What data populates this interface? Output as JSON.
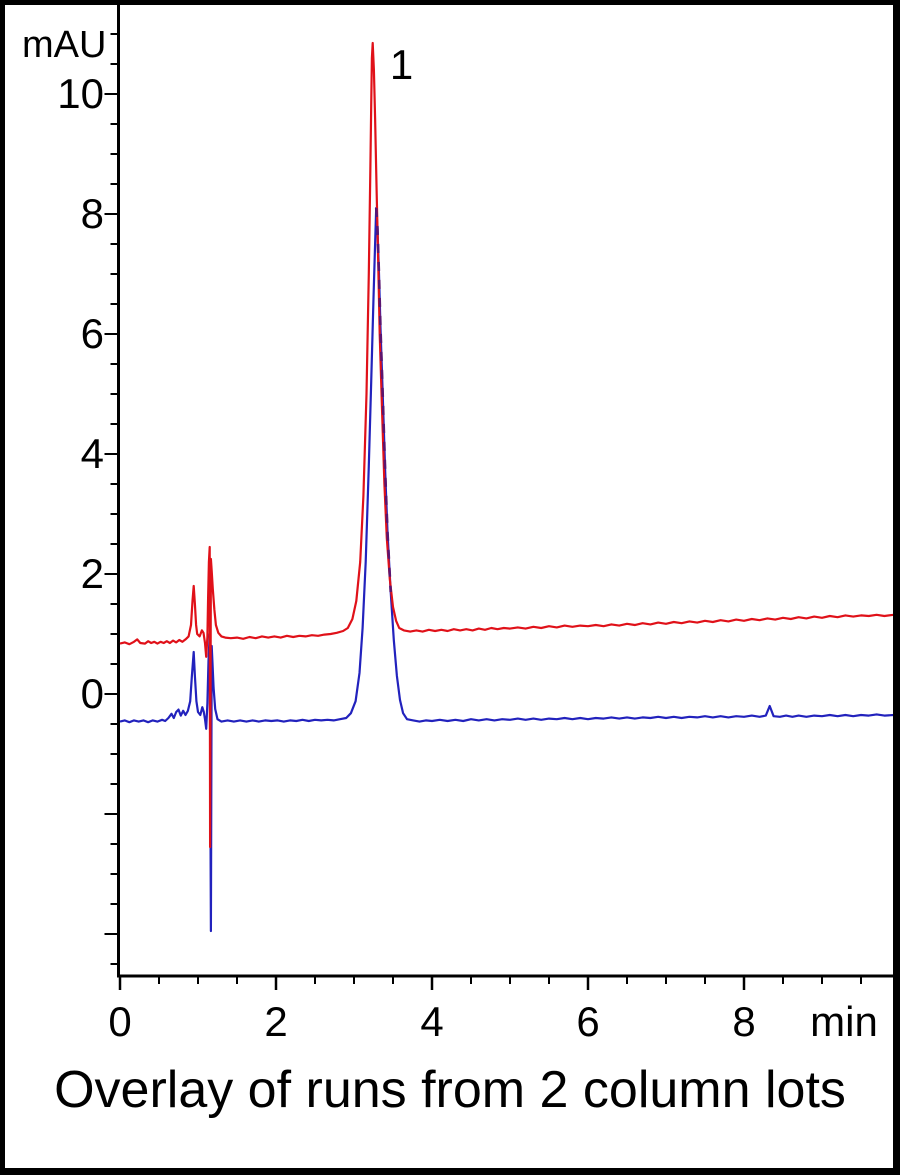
{
  "caption": "Overlay of runs from 2 column lots",
  "colors": {
    "trace_red": "#e01119",
    "trace_blue": "#2222bd",
    "overlap_purple": "#5a1570",
    "axis": "#000000",
    "background": "#ffffff",
    "border": "#000000"
  },
  "chart_data": {
    "type": "line",
    "title": "Overlay of runs from 2 column lots",
    "xlabel": "min",
    "ylabel": "mAU",
    "xlim": [
      0,
      9.92
    ],
    "ylim": [
      -4.7,
      11.5
    ],
    "grid": false,
    "legend": "none",
    "x_major_ticks": [
      0,
      2,
      4,
      6,
      8
    ],
    "x_minor_step": 0.5,
    "y_major_ticks": [
      10,
      8,
      6,
      4,
      2,
      0,
      -2,
      -4
    ],
    "y_labeled_ticks": [
      10,
      8,
      6,
      4,
      2,
      0
    ],
    "y_minor_step": 0.5,
    "annotations": [
      {
        "text": "1",
        "x": 3.61,
        "y": 10.48
      }
    ],
    "overlap_segment": {
      "series": "column lot 2 (blue)",
      "from_x": 3.285,
      "to_x": 3.47,
      "style": "dashed"
    },
    "series": [
      {
        "name": "column lot 1 (red)",
        "color": "#e01119",
        "points": [
          [
            0.0,
            0.84
          ],
          [
            0.06,
            0.86
          ],
          [
            0.12,
            0.83
          ],
          [
            0.18,
            0.87
          ],
          [
            0.22,
            0.91
          ],
          [
            0.26,
            0.85
          ],
          [
            0.32,
            0.84
          ],
          [
            0.36,
            0.88
          ],
          [
            0.4,
            0.85
          ],
          [
            0.44,
            0.87
          ],
          [
            0.48,
            0.84
          ],
          [
            0.52,
            0.87
          ],
          [
            0.56,
            0.85
          ],
          [
            0.6,
            0.88
          ],
          [
            0.64,
            0.85
          ],
          [
            0.68,
            0.89
          ],
          [
            0.72,
            0.86
          ],
          [
            0.76,
            0.9
          ],
          [
            0.8,
            0.87
          ],
          [
            0.84,
            0.91
          ],
          [
            0.88,
            0.96
          ],
          [
            0.91,
            1.15
          ],
          [
            0.93,
            1.55
          ],
          [
            0.945,
            1.8
          ],
          [
            0.96,
            1.5
          ],
          [
            0.975,
            1.15
          ],
          [
            0.99,
            1.0
          ],
          [
            1.02,
            0.96
          ],
          [
            1.05,
            1.06
          ],
          [
            1.07,
            1.02
          ],
          [
            1.09,
            0.85
          ],
          [
            1.105,
            0.62
          ],
          [
            1.12,
            0.95
          ],
          [
            1.13,
            1.6
          ],
          [
            1.14,
            2.2
          ],
          [
            1.15,
            2.45
          ],
          [
            1.155,
            -2.55
          ],
          [
            1.165,
            2.25
          ],
          [
            1.175,
            2.05
          ],
          [
            1.19,
            1.75
          ],
          [
            1.21,
            1.4
          ],
          [
            1.23,
            1.15
          ],
          [
            1.26,
            1.02
          ],
          [
            1.3,
            0.96
          ],
          [
            1.35,
            0.94
          ],
          [
            1.42,
            0.93
          ],
          [
            1.5,
            0.94
          ],
          [
            1.58,
            0.92
          ],
          [
            1.66,
            0.95
          ],
          [
            1.74,
            0.93
          ],
          [
            1.82,
            0.96
          ],
          [
            1.9,
            0.94
          ],
          [
            1.98,
            0.96
          ],
          [
            2.06,
            0.94
          ],
          [
            2.14,
            0.97
          ],
          [
            2.22,
            0.95
          ],
          [
            2.3,
            0.97
          ],
          [
            2.38,
            0.96
          ],
          [
            2.46,
            0.98
          ],
          [
            2.54,
            0.97
          ],
          [
            2.62,
            0.99
          ],
          [
            2.7,
            1.0
          ],
          [
            2.78,
            1.02
          ],
          [
            2.86,
            1.05
          ],
          [
            2.92,
            1.1
          ],
          [
            2.98,
            1.25
          ],
          [
            3.03,
            1.55
          ],
          [
            3.08,
            2.2
          ],
          [
            3.12,
            3.3
          ],
          [
            3.16,
            5.0
          ],
          [
            3.19,
            7.0
          ],
          [
            3.21,
            8.8
          ],
          [
            3.22,
            9.8
          ],
          [
            3.23,
            10.6
          ],
          [
            3.24,
            10.85
          ],
          [
            3.255,
            10.4
          ],
          [
            3.27,
            9.6
          ],
          [
            3.29,
            8.4
          ],
          [
            3.31,
            7.2
          ],
          [
            3.33,
            6.0
          ],
          [
            3.36,
            4.7
          ],
          [
            3.39,
            3.5
          ],
          [
            3.42,
            2.6
          ],
          [
            3.46,
            1.9
          ],
          [
            3.5,
            1.45
          ],
          [
            3.54,
            1.22
          ],
          [
            3.58,
            1.1
          ],
          [
            3.64,
            1.06
          ],
          [
            3.72,
            1.04
          ],
          [
            3.8,
            1.06
          ],
          [
            3.88,
            1.04
          ],
          [
            3.96,
            1.07
          ],
          [
            4.04,
            1.05
          ],
          [
            4.12,
            1.07
          ],
          [
            4.2,
            1.05
          ],
          [
            4.28,
            1.08
          ],
          [
            4.36,
            1.06
          ],
          [
            4.44,
            1.08
          ],
          [
            4.52,
            1.06
          ],
          [
            4.6,
            1.09
          ],
          [
            4.68,
            1.07
          ],
          [
            4.76,
            1.1
          ],
          [
            4.84,
            1.08
          ],
          [
            4.92,
            1.1
          ],
          [
            5.0,
            1.09
          ],
          [
            5.1,
            1.11
          ],
          [
            5.2,
            1.09
          ],
          [
            5.3,
            1.12
          ],
          [
            5.4,
            1.1
          ],
          [
            5.5,
            1.13
          ],
          [
            5.6,
            1.11
          ],
          [
            5.7,
            1.14
          ],
          [
            5.8,
            1.12
          ],
          [
            5.9,
            1.14
          ],
          [
            6.0,
            1.13
          ],
          [
            6.1,
            1.15
          ],
          [
            6.2,
            1.13
          ],
          [
            6.3,
            1.16
          ],
          [
            6.4,
            1.14
          ],
          [
            6.5,
            1.17
          ],
          [
            6.6,
            1.15
          ],
          [
            6.7,
            1.18
          ],
          [
            6.8,
            1.16
          ],
          [
            6.9,
            1.19
          ],
          [
            7.0,
            1.17
          ],
          [
            7.1,
            1.2
          ],
          [
            7.2,
            1.18
          ],
          [
            7.3,
            1.21
          ],
          [
            7.4,
            1.19
          ],
          [
            7.5,
            1.22
          ],
          [
            7.6,
            1.2
          ],
          [
            7.7,
            1.23
          ],
          [
            7.8,
            1.21
          ],
          [
            7.9,
            1.24
          ],
          [
            8.0,
            1.22
          ],
          [
            8.1,
            1.25
          ],
          [
            8.2,
            1.23
          ],
          [
            8.3,
            1.26
          ],
          [
            8.4,
            1.24
          ],
          [
            8.5,
            1.27
          ],
          [
            8.6,
            1.25
          ],
          [
            8.7,
            1.28
          ],
          [
            8.8,
            1.26
          ],
          [
            8.9,
            1.29
          ],
          [
            9.0,
            1.27
          ],
          [
            9.1,
            1.3
          ],
          [
            9.2,
            1.28
          ],
          [
            9.3,
            1.31
          ],
          [
            9.4,
            1.29
          ],
          [
            9.5,
            1.31
          ],
          [
            9.6,
            1.3
          ],
          [
            9.7,
            1.32
          ],
          [
            9.8,
            1.3
          ],
          [
            9.92,
            1.32
          ]
        ]
      },
      {
        "name": "column lot 2 (blue)",
        "color": "#2222bd",
        "points": [
          [
            0.0,
            -0.46
          ],
          [
            0.06,
            -0.44
          ],
          [
            0.12,
            -0.47
          ],
          [
            0.18,
            -0.44
          ],
          [
            0.24,
            -0.46
          ],
          [
            0.3,
            -0.44
          ],
          [
            0.36,
            -0.47
          ],
          [
            0.42,
            -0.44
          ],
          [
            0.48,
            -0.46
          ],
          [
            0.54,
            -0.43
          ],
          [
            0.58,
            -0.45
          ],
          [
            0.62,
            -0.4
          ],
          [
            0.66,
            -0.33
          ],
          [
            0.69,
            -0.4
          ],
          [
            0.72,
            -0.3
          ],
          [
            0.75,
            -0.26
          ],
          [
            0.78,
            -0.36
          ],
          [
            0.81,
            -0.28
          ],
          [
            0.84,
            -0.35
          ],
          [
            0.87,
            -0.28
          ],
          [
            0.9,
            -0.12
          ],
          [
            0.92,
            0.28
          ],
          [
            0.945,
            0.7
          ],
          [
            0.96,
            0.3
          ],
          [
            0.98,
            -0.12
          ],
          [
            1.0,
            -0.3
          ],
          [
            1.03,
            -0.35
          ],
          [
            1.055,
            -0.22
          ],
          [
            1.075,
            -0.3
          ],
          [
            1.09,
            -0.42
          ],
          [
            1.105,
            -0.58
          ],
          [
            1.12,
            -0.15
          ],
          [
            1.135,
            0.55
          ],
          [
            1.15,
            1.0
          ],
          [
            1.165,
            -3.95
          ],
          [
            1.175,
            0.8
          ],
          [
            1.185,
            0.55
          ],
          [
            1.2,
            0.1
          ],
          [
            1.22,
            -0.25
          ],
          [
            1.25,
            -0.42
          ],
          [
            1.3,
            -0.46
          ],
          [
            1.38,
            -0.44
          ],
          [
            1.46,
            -0.46
          ],
          [
            1.54,
            -0.44
          ],
          [
            1.62,
            -0.46
          ],
          [
            1.7,
            -0.44
          ],
          [
            1.78,
            -0.46
          ],
          [
            1.86,
            -0.44
          ],
          [
            1.94,
            -0.45
          ],
          [
            2.02,
            -0.44
          ],
          [
            2.1,
            -0.46
          ],
          [
            2.18,
            -0.44
          ],
          [
            2.26,
            -0.45
          ],
          [
            2.34,
            -0.43
          ],
          [
            2.42,
            -0.45
          ],
          [
            2.5,
            -0.43
          ],
          [
            2.58,
            -0.44
          ],
          [
            2.66,
            -0.43
          ],
          [
            2.74,
            -0.44
          ],
          [
            2.82,
            -0.42
          ],
          [
            2.9,
            -0.4
          ],
          [
            2.96,
            -0.32
          ],
          [
            3.02,
            -0.12
          ],
          [
            3.07,
            0.35
          ],
          [
            3.11,
            1.1
          ],
          [
            3.15,
            2.2
          ],
          [
            3.19,
            3.8
          ],
          [
            3.22,
            5.2
          ],
          [
            3.25,
            6.6
          ],
          [
            3.27,
            7.5
          ],
          [
            3.285,
            8.1
          ],
          [
            3.3,
            7.8
          ],
          [
            3.32,
            7.0
          ],
          [
            3.34,
            6.1
          ],
          [
            3.37,
            4.9
          ],
          [
            3.4,
            3.7
          ],
          [
            3.43,
            2.7
          ],
          [
            3.47,
            1.7
          ],
          [
            3.51,
            0.9
          ],
          [
            3.55,
            0.3
          ],
          [
            3.59,
            -0.1
          ],
          [
            3.63,
            -0.32
          ],
          [
            3.68,
            -0.42
          ],
          [
            3.76,
            -0.44
          ],
          [
            3.84,
            -0.46
          ],
          [
            3.92,
            -0.44
          ],
          [
            4.0,
            -0.45
          ],
          [
            4.1,
            -0.43
          ],
          [
            4.2,
            -0.45
          ],
          [
            4.3,
            -0.43
          ],
          [
            4.4,
            -0.45
          ],
          [
            4.5,
            -0.42
          ],
          [
            4.6,
            -0.44
          ],
          [
            4.7,
            -0.42
          ],
          [
            4.8,
            -0.44
          ],
          [
            4.9,
            -0.42
          ],
          [
            5.0,
            -0.43
          ],
          [
            5.1,
            -0.41
          ],
          [
            5.2,
            -0.43
          ],
          [
            5.3,
            -0.41
          ],
          [
            5.4,
            -0.43
          ],
          [
            5.5,
            -0.41
          ],
          [
            5.6,
            -0.42
          ],
          [
            5.7,
            -0.4
          ],
          [
            5.8,
            -0.42
          ],
          [
            5.9,
            -0.4
          ],
          [
            6.0,
            -0.42
          ],
          [
            6.1,
            -0.4
          ],
          [
            6.2,
            -0.41
          ],
          [
            6.3,
            -0.39
          ],
          [
            6.4,
            -0.41
          ],
          [
            6.5,
            -0.39
          ],
          [
            6.6,
            -0.41
          ],
          [
            6.7,
            -0.39
          ],
          [
            6.8,
            -0.4
          ],
          [
            6.9,
            -0.38
          ],
          [
            7.0,
            -0.4
          ],
          [
            7.1,
            -0.38
          ],
          [
            7.2,
            -0.4
          ],
          [
            7.3,
            -0.38
          ],
          [
            7.4,
            -0.39
          ],
          [
            7.5,
            -0.37
          ],
          [
            7.6,
            -0.39
          ],
          [
            7.7,
            -0.37
          ],
          [
            7.8,
            -0.39
          ],
          [
            7.9,
            -0.37
          ],
          [
            8.0,
            -0.38
          ],
          [
            8.1,
            -0.36
          ],
          [
            8.2,
            -0.38
          ],
          [
            8.28,
            -0.36
          ],
          [
            8.33,
            -0.2
          ],
          [
            8.38,
            -0.37
          ],
          [
            8.46,
            -0.38
          ],
          [
            8.54,
            -0.36
          ],
          [
            8.62,
            -0.38
          ],
          [
            8.7,
            -0.36
          ],
          [
            8.8,
            -0.38
          ],
          [
            8.9,
            -0.36
          ],
          [
            9.0,
            -0.37
          ],
          [
            9.1,
            -0.35
          ],
          [
            9.2,
            -0.37
          ],
          [
            9.3,
            -0.35
          ],
          [
            9.4,
            -0.37
          ],
          [
            9.5,
            -0.35
          ],
          [
            9.6,
            -0.36
          ],
          [
            9.7,
            -0.34
          ],
          [
            9.8,
            -0.36
          ],
          [
            9.92,
            -0.35
          ]
        ]
      }
    ]
  }
}
